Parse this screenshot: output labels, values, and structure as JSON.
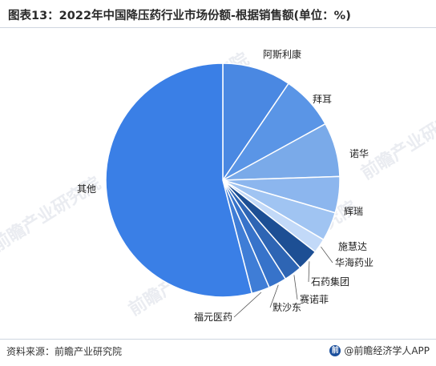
{
  "title": "图表13：2022年中国降压药行业市场份额-根据销售额(单位：%)",
  "footer": {
    "source": "资料来源：前瞻产业研究院",
    "brand": "@前瞻经济学人APP",
    "brand_logo": "前"
  },
  "watermark": "前瞻产业研究院",
  "colors": {
    "other": "#3a7fe6",
    "main": [
      "#4a88e2",
      "#5a95e6",
      "#7aaae9",
      "#8cb6ee",
      "#a0c4f2",
      "#c2d9f8"
    ],
    "dark": [
      "#1d4f94",
      "#2e65b4",
      "#3773ca",
      "#3f7dd6"
    ]
  },
  "chart_data": {
    "type": "pie",
    "title": "图表13：2022年中国降压药行业市场份额-根据销售额(单位：%)",
    "slices": [
      {
        "label": "阿斯利康",
        "value": 9.5
      },
      {
        "label": "拜耳",
        "value": 7.5
      },
      {
        "label": "诺华",
        "value": 7.5
      },
      {
        "label": "辉瑞",
        "value": 5.0
      },
      {
        "label": "施慧达",
        "value": 4.0
      },
      {
        "label": "华海药业",
        "value": 2.0
      },
      {
        "label": "石药集团",
        "value": 3.0
      },
      {
        "label": "赛诺菲",
        "value": 2.5
      },
      {
        "label": "默沙东",
        "value": 2.5
      },
      {
        "label": "福元医药",
        "value": 2.5
      },
      {
        "label": "其他",
        "value": 54.0
      }
    ]
  }
}
